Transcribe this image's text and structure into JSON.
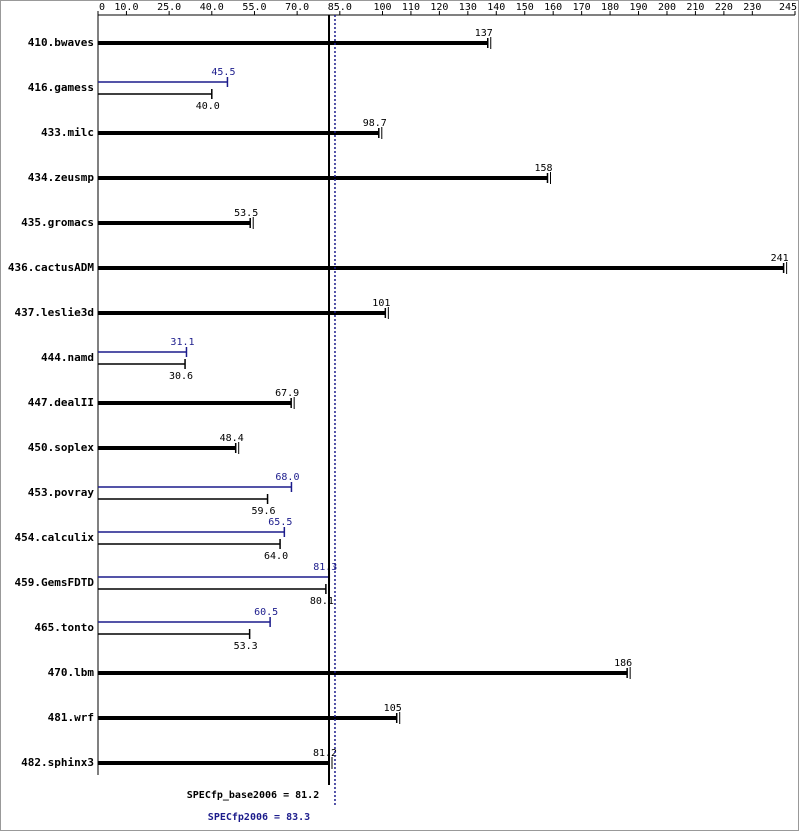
{
  "chart_data": {
    "type": "bar",
    "orientation": "horizontal",
    "categories": [
      "410.bwaves",
      "416.gamess",
      "433.milc",
      "434.zeusmp",
      "435.gromacs",
      "436.cactusADM",
      "437.leslie3d",
      "444.namd",
      "447.dealII",
      "450.soplex",
      "453.povray",
      "454.calculix",
      "459.GemsFDTD",
      "465.tonto",
      "470.lbm",
      "481.wrf",
      "482.sphinx3"
    ],
    "series": [
      {
        "color": "#000000",
        "values": [
          137,
          40.0,
          98.7,
          158,
          53.5,
          241,
          101,
          30.6,
          67.9,
          48.4,
          59.6,
          64.0,
          80.1,
          53.3,
          186,
          105,
          81.2
        ],
        "value_labels": [
          "137",
          "40.0",
          "98.7",
          "158",
          "53.5",
          "241",
          "101",
          "30.6",
          "67.9",
          "48.4",
          "59.6",
          "64.0",
          "80.1",
          "53.3",
          "186",
          "105",
          "81.2"
        ]
      },
      {
        "color": "#1c1c8c",
        "values": [
          null,
          45.5,
          null,
          null,
          null,
          null,
          null,
          31.1,
          null,
          null,
          68.0,
          65.5,
          81.3,
          60.5,
          null,
          null,
          null
        ],
        "value_labels": [
          null,
          "45.5",
          null,
          null,
          null,
          null,
          null,
          "31.1",
          null,
          null,
          "68.0",
          "65.5",
          "81.3",
          "60.5",
          null,
          null,
          null
        ]
      }
    ],
    "xlim": [
      0,
      245
    ],
    "xticks": [
      0,
      {
        "value": 10,
        "label": "10.0"
      },
      {
        "value": 25,
        "label": "25.0"
      },
      {
        "value": 40,
        "label": "40.0"
      },
      {
        "value": 55,
        "label": "55.0"
      },
      {
        "value": 70,
        "label": "70.0"
      },
      {
        "value": 85,
        "label": "85.0"
      },
      100,
      110,
      120,
      130,
      140,
      150,
      160,
      170,
      180,
      190,
      200,
      210,
      220,
      230,
      245
    ],
    "reference_lines": [
      {
        "label": "SPECfp_base2006 = 81.2",
        "value": 81.2,
        "color": "#000000",
        "style": "solid"
      },
      {
        "label": "SPECfp2006 = 83.3",
        "value": 83.3,
        "color": "#1c1c8c",
        "style": "dotted"
      }
    ]
  }
}
